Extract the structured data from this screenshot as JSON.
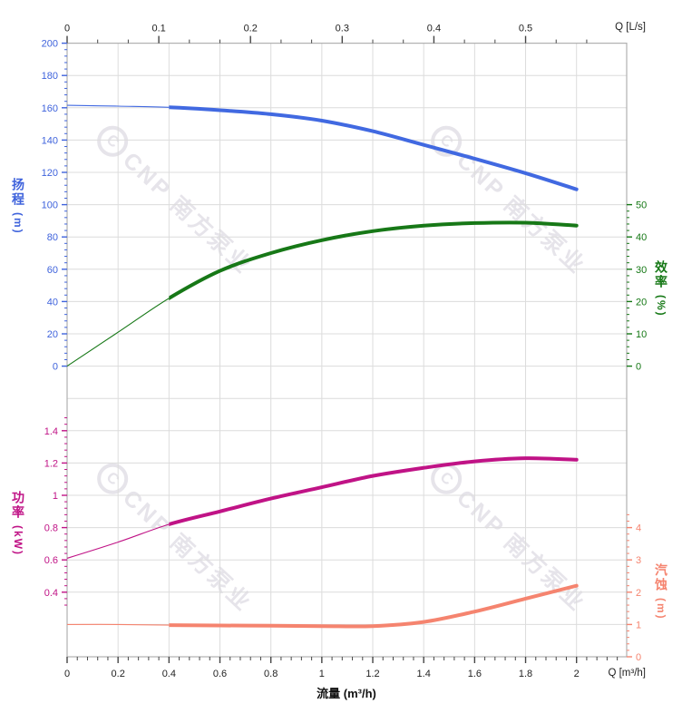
{
  "page": {
    "background": "#ffffff"
  },
  "watermark": {
    "logo_letter": "C",
    "brand": "CNP 南方泵业",
    "color": "#e6e4ea"
  },
  "axes": {
    "top_x": {
      "title": "Q [L/s]",
      "color": "#222222"
    },
    "bottom_x": {
      "title": "Q [m³/h]",
      "axis_name": "流量 (m³/h)",
      "color": "#222222"
    },
    "head": {
      "name": "扬程",
      "unit": "(m)",
      "label": "扬程 (m)",
      "color": "#3f63dc"
    },
    "efficiency": {
      "name": "效率",
      "unit": "(%)",
      "label": "效率 (%)",
      "color": "#157815"
    },
    "power": {
      "name": "功率",
      "unit": "(kW)",
      "label": "功率 (kW)",
      "color": "#c01386"
    },
    "npsh": {
      "name": "汽蚀",
      "unit": "(m)",
      "label": "汽蚀 (m)",
      "color": "#f5846f"
    }
  },
  "chart_data": {
    "type": "line",
    "title": "",
    "xlabel": "流量 (m³/h)",
    "x_secondary_label": "Q [L/s]",
    "x": [
      0,
      0.2,
      0.4,
      0.6,
      0.8,
      1.0,
      1.2,
      1.4,
      1.6,
      1.8,
      2.0
    ],
    "x_range": [
      0,
      2.2
    ],
    "grid": true,
    "series": [
      {
        "name": "扬程",
        "unit": "m",
        "axis": "head",
        "color": "#4169e1",
        "values": [
          161.5,
          161,
          160.3,
          158.5,
          156,
          152,
          145.5,
          137,
          128.5,
          119.5,
          109.5
        ]
      },
      {
        "name": "效率",
        "unit": "%",
        "axis": "efficiency",
        "color": "#177817",
        "values": [
          0,
          10.5,
          21,
          29.5,
          35,
          39,
          41.8,
          43.5,
          44.3,
          44.4,
          43.5
        ]
      },
      {
        "name": "功率",
        "unit": "kW",
        "axis": "power",
        "color": "#c01386",
        "values": [
          0.61,
          0.71,
          0.82,
          0.9,
          0.98,
          1.05,
          1.12,
          1.17,
          1.21,
          1.23,
          1.22
        ]
      },
      {
        "name": "汽蚀",
        "unit": "m",
        "axis": "npsh",
        "color": "#f5846f",
        "values": [
          1.0,
          1.0,
          0.98,
          0.97,
          0.96,
          0.95,
          0.95,
          1.08,
          1.4,
          1.8,
          2.2
        ]
      }
    ],
    "axis_scales": {
      "head": {
        "min": 0,
        "max": 200,
        "major": 20,
        "minor": 4,
        "side": "left",
        "units_per_grid_row": 20
      },
      "efficiency": {
        "min": 0,
        "max": 50,
        "major": 10,
        "minor": 2,
        "side": "right",
        "units_per_grid_row": 10
      },
      "power": {
        "min": 0.4,
        "max": 1.4,
        "major": 0.2,
        "minor": 0.04,
        "side": "left",
        "units_per_grid_row": 0.2,
        "minor_min": 0.32,
        "minor_max": 1.48
      },
      "npsh": {
        "min": 0,
        "max": 4,
        "major": 1,
        "minor": 0.2,
        "side": "right",
        "units_per_grid_row": 1,
        "minor_max": 4.4
      }
    },
    "bottom_axis": {
      "major": 0.2,
      "minor": 0.04,
      "max_major": 2.0,
      "minor_max": 2.16
    },
    "top_axis": {
      "major": 0.1,
      "minor_fraction": 3,
      "max_major": 0.5,
      "minor_max": 0.5667,
      "conversion_m3h_per_Ls": 3.6
    },
    "line_style": {
      "thin_x_range": [
        0,
        0.4
      ],
      "thick_x_range": [
        0.4,
        2.0
      ]
    }
  }
}
